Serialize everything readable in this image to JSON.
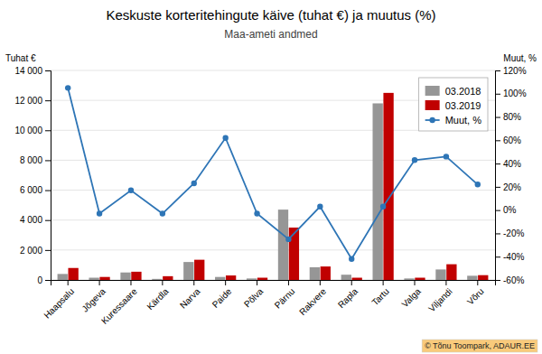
{
  "chart_data": {
    "type": "bar",
    "title": "Keskuste korteritehingute käive (tuhat €) ja muutus (%)",
    "subtitle": "Maa-ameti andmed",
    "y_label": "Tuhat €",
    "y2_label": "Muut, %",
    "categories": [
      "Haapsalu",
      "Jõgeva",
      "Kuressaare",
      "Kärdla",
      "Narva",
      "Paide",
      "Põlva",
      "Pärnu",
      "Rakvere",
      "Rapla",
      "Tartu",
      "Valga",
      "Viljandi",
      "Võru"
    ],
    "series": [
      {
        "name": "03.2018",
        "type": "bar",
        "color": "#969696",
        "values": [
          400,
          150,
          500,
          70,
          1200,
          200,
          100,
          4700,
          850,
          350,
          11800,
          100,
          700,
          280
        ]
      },
      {
        "name": "03.2019",
        "type": "bar",
        "color": "#C00000",
        "values": [
          800,
          200,
          550,
          250,
          1350,
          300,
          150,
          3500,
          900,
          150,
          12500,
          150,
          1050,
          320
        ]
      },
      {
        "name": "Muut, %",
        "type": "line",
        "axis": "y2",
        "color": "#2E75B6",
        "marker": "circle",
        "line_style": "solid",
        "values": [
          105,
          -3,
          17,
          -3,
          23,
          62,
          -3,
          -25,
          3,
          -42,
          3,
          43,
          46,
          22
        ]
      }
    ],
    "ylim": [
      0,
      14000
    ],
    "yticks": [
      0,
      {
        "value": 2000,
        "label": "2 000"
      },
      {
        "value": 4000,
        "label": "4 000"
      },
      {
        "value": 6000,
        "label": "6 000"
      },
      {
        "value": 8000,
        "label": "8 000"
      },
      {
        "value": 10000,
        "label": "10 000"
      },
      {
        "value": 12000,
        "label": "12 000"
      },
      {
        "value": 14000,
        "label": "14 000"
      }
    ],
    "y2lim": [
      -60,
      120
    ],
    "y2ticks": [
      {
        "value": -60,
        "label": "-60%"
      },
      {
        "value": -40,
        "label": "-40%"
      },
      {
        "value": -20,
        "label": "-20%"
      },
      {
        "value": 0,
        "label": "0%"
      },
      {
        "value": 20,
        "label": "20%"
      },
      {
        "value": 40,
        "label": "40%"
      },
      {
        "value": 60,
        "label": "60%"
      },
      {
        "value": 80,
        "label": "80%"
      },
      {
        "value": 100,
        "label": "100%"
      },
      {
        "value": 120,
        "label": "120%"
      }
    ],
    "grid": true,
    "legend": "upper right",
    "annotations": [
      "© Tõnu Toompark, ADAUR.EE"
    ]
  }
}
